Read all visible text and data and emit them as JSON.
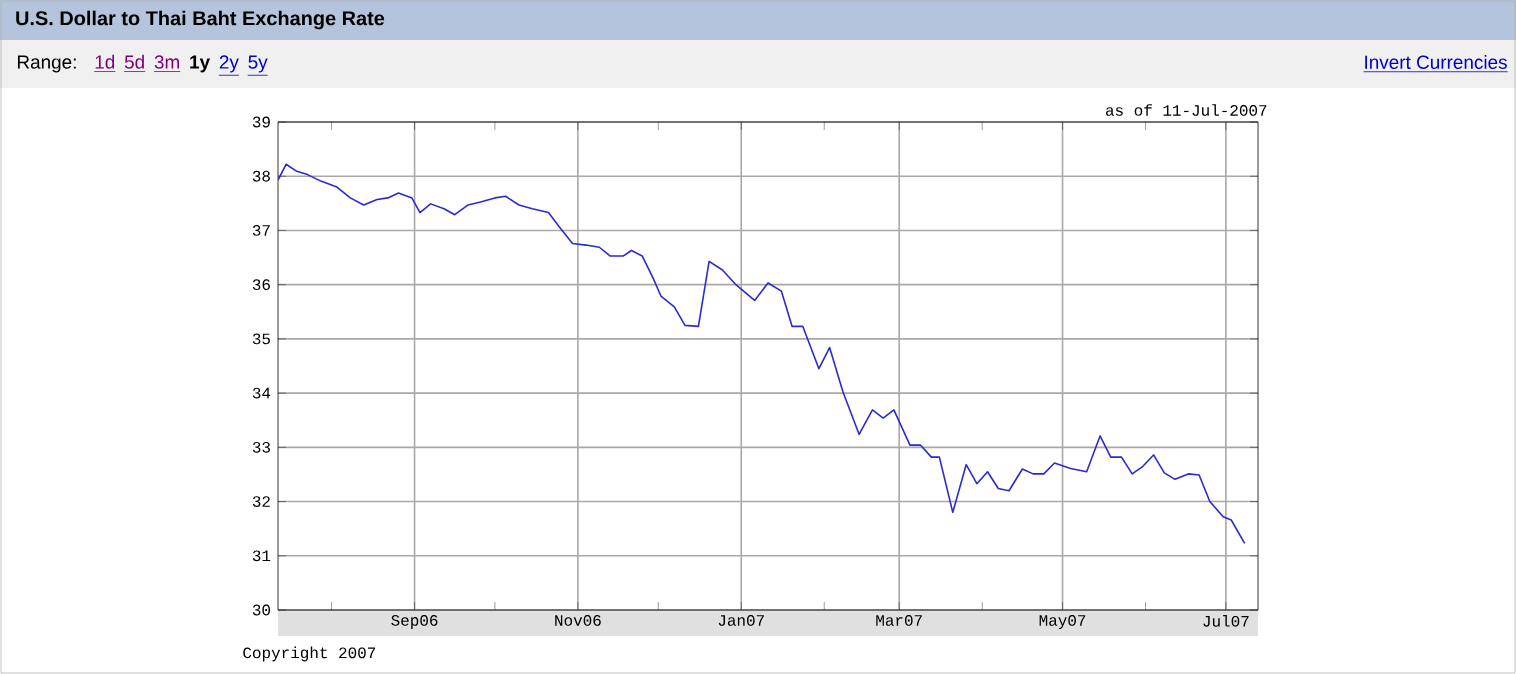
{
  "chart_data": {
    "type": "line",
    "title": "U.S. Dollar to Thai Baht Exchange Rate",
    "annotations": [
      "Range:",
      "1d",
      "5d",
      "3m",
      "1y",
      "2y",
      "5y",
      "Invert Currencies",
      "as of 11-Jul-2007",
      "Copyright 2007"
    ],
    "x": [
      "2006-07-12",
      "2006-07-15",
      "2006-07-19",
      "2006-07-23",
      "2006-07-28",
      "2006-08-03",
      "2006-08-08",
      "2006-08-13",
      "2006-08-18",
      "2006-08-22",
      "2006-08-26",
      "2006-08-31",
      "2006-09-03",
      "2006-09-07",
      "2006-09-12",
      "2006-09-16",
      "2006-09-21",
      "2006-09-26",
      "2006-10-01",
      "2006-10-05",
      "2006-10-10",
      "2006-10-15",
      "2006-10-21",
      "2006-10-25",
      "2006-10-30",
      "2006-11-04",
      "2006-11-09",
      "2006-11-13",
      "2006-11-18",
      "2006-11-21",
      "2006-11-25",
      "2006-11-29",
      "2006-12-02",
      "2006-12-07",
      "2006-12-11",
      "2006-12-16",
      "2006-12-20",
      "2006-12-25",
      "2006-12-30",
      "2007-01-06",
      "2007-01-11",
      "2007-01-16",
      "2007-01-20",
      "2007-01-24",
      "2007-01-30",
      "2007-02-03",
      "2007-02-08",
      "2007-02-14",
      "2007-02-19",
      "2007-02-23",
      "2007-02-27",
      "2007-03-05",
      "2007-03-09",
      "2007-03-13",
      "2007-03-16",
      "2007-03-21",
      "2007-03-26",
      "2007-03-30",
      "2007-04-03",
      "2007-04-07",
      "2007-04-11",
      "2007-04-16",
      "2007-04-20",
      "2007-04-24",
      "2007-04-28",
      "2007-05-04",
      "2007-05-10",
      "2007-05-15",
      "2007-05-19",
      "2007-05-23",
      "2007-05-27",
      "2007-05-31",
      "2007-06-04",
      "2007-06-08",
      "2007-06-12",
      "2007-06-17",
      "2007-06-21",
      "2007-06-25",
      "2007-06-30",
      "2007-07-03",
      "2007-07-08"
    ],
    "series": [
      {
        "color": "#2a2ad0",
        "values": [
          37.93,
          38.22,
          38.09,
          38.03,
          37.91,
          37.8,
          37.6,
          37.47,
          37.57,
          37.6,
          37.69,
          37.6,
          37.33,
          37.49,
          37.4,
          37.29,
          37.47,
          37.53,
          37.6,
          37.63,
          37.47,
          37.4,
          37.33,
          37.07,
          36.76,
          36.73,
          36.69,
          36.53,
          36.53,
          36.63,
          36.53,
          36.13,
          35.79,
          35.59,
          35.25,
          35.23,
          36.43,
          36.27,
          36.0,
          35.71,
          36.03,
          35.88,
          35.23,
          35.23,
          34.45,
          34.84,
          34.02,
          33.24,
          33.69,
          33.54,
          33.69,
          33.04,
          33.04,
          32.82,
          32.82,
          31.8,
          32.68,
          32.33,
          32.55,
          32.24,
          32.2,
          32.6,
          32.51,
          32.51,
          32.71,
          32.61,
          32.55,
          33.21,
          32.82,
          32.82,
          32.51,
          32.65,
          32.86,
          32.53,
          32.41,
          32.51,
          32.49,
          32.0,
          31.72,
          31.66,
          31.23
        ]
      }
    ],
    "xlim": [
      "2006-07-12",
      "2007-07-13"
    ],
    "xticks": [
      {
        "value": "2006-08-01",
        "label": null
      },
      {
        "value": "2006-09-01",
        "label": "Sep06"
      },
      {
        "value": "2006-10-01",
        "label": null
      },
      {
        "value": "2006-11-01",
        "label": "Nov06"
      },
      {
        "value": "2006-12-01",
        "label": null
      },
      {
        "value": "2007-01-01",
        "label": "Jan07"
      },
      {
        "value": "2007-02-01",
        "label": null
      },
      {
        "value": "2007-03-01",
        "label": "Mar07"
      },
      {
        "value": "2007-04-01",
        "label": null
      },
      {
        "value": "2007-05-01",
        "label": "May07"
      },
      {
        "value": "2007-06-01",
        "label": null
      },
      {
        "value": "2007-07-01",
        "label": "Jul07"
      }
    ],
    "ylim": [
      30,
      39
    ],
    "yticks": [
      30,
      31,
      32,
      33,
      34,
      35,
      36,
      37,
      38,
      39
    ],
    "grid": true
  }
}
